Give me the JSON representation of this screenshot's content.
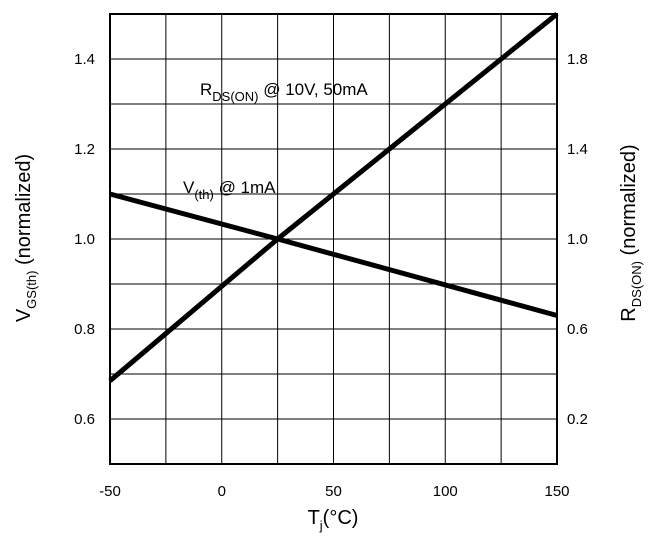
{
  "chart_data": {
    "type": "line",
    "title": "",
    "xlabel": {
      "main": "T",
      "sub": "j",
      "rest": "(°C)"
    },
    "ylabel_left": {
      "main": "V",
      "sub": "GS(th)",
      "rest": " (normalized)"
    },
    "ylabel_right": {
      "main": "R",
      "sub": "DS(ON)",
      "rest": " (normalized)"
    },
    "xlim": [
      -50,
      150
    ],
    "ylim_left": [
      0.5,
      1.5
    ],
    "ylim_right": [
      0,
      2.0
    ],
    "grid": true,
    "x_ticks": [
      "-50",
      "0",
      "50",
      "100",
      "150"
    ],
    "y_ticks_left": [
      "0.6",
      "0.8",
      "1.0",
      "1.2",
      "1.4"
    ],
    "y_ticks_right": [
      "0.2",
      "0.6",
      "1.0",
      "1.4",
      "1.8"
    ],
    "series": [
      {
        "name": {
          "main": "R",
          "sub": "DS(ON)",
          "rest": " @ 10V, 50mA"
        },
        "axis": "right",
        "x": [
          -50,
          25,
          150
        ],
        "y": [
          0.37,
          1.0,
          2.0
        ]
      },
      {
        "name": {
          "main": "V",
          "sub": "(th)",
          "rest": " @ 1mA"
        },
        "axis": "left",
        "x": [
          -50,
          25,
          150
        ],
        "y": [
          1.1,
          1.0,
          0.83
        ]
      }
    ]
  }
}
